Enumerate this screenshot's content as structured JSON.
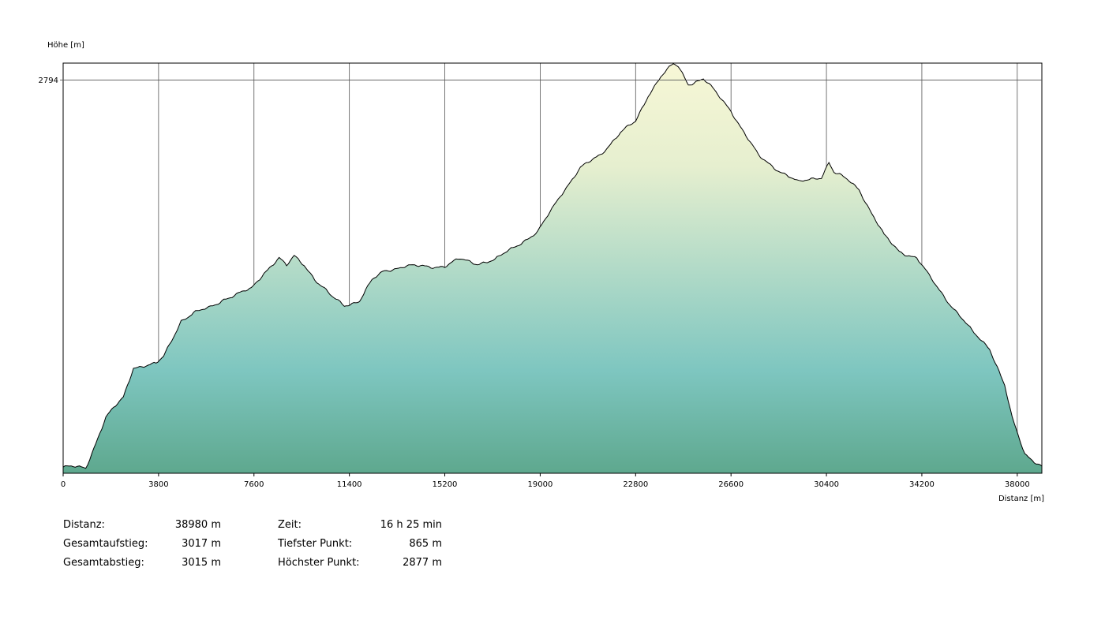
{
  "chart_data": {
    "type": "area",
    "ylabel": "Höhe [m]",
    "xlabel": "Distanz [m]",
    "x_ticks": [
      0,
      3800,
      7600,
      11400,
      15200,
      19000,
      22800,
      26600,
      30400,
      34200,
      38000
    ],
    "y_tick_labels": [
      2794
    ],
    "xlim": [
      0,
      38980
    ],
    "ylim": [
      865,
      2877
    ],
    "grid": true,
    "colors": {
      "top": "#f7f7d6",
      "middle": "#7ec6c0",
      "bottom": "#5ea88e",
      "line": "#000000",
      "grid": "#555555"
    },
    "x": [
      0,
      400,
      900,
      1700,
      2400,
      2800,
      3300,
      3700,
      4000,
      4700,
      5200,
      5800,
      6400,
      6900,
      7500,
      8000,
      8600,
      8900,
      9200,
      9600,
      10100,
      10700,
      11200,
      11800,
      12300,
      12800,
      13600,
      14400,
      15200,
      15800,
      16500,
      17200,
      18000,
      18900,
      19800,
      20600,
      21400,
      22200,
      22800,
      23300,
      23800,
      24300,
      24500,
      24900,
      25500,
      25800,
      26000,
      26600,
      27200,
      27700,
      28400,
      29300,
      29800,
      30200,
      30500,
      30700,
      31300,
      31700,
      32200,
      32700,
      33300,
      34000,
      34500,
      35300,
      36200,
      36900,
      37500,
      37800,
      38300,
      38980
    ],
    "y": [
      895,
      895,
      890,
      1140,
      1235,
      1385,
      1395,
      1400,
      1435,
      1615,
      1650,
      1675,
      1720,
      1740,
      1770,
      1850,
      1920,
      1880,
      1930,
      1890,
      1805,
      1730,
      1690,
      1710,
      1810,
      1860,
      1880,
      1880,
      1880,
      1915,
      1895,
      1910,
      1980,
      2045,
      2230,
      2360,
      2430,
      2535,
      2590,
      2720,
      2810,
      2870,
      2860,
      2775,
      2800,
      2760,
      2730,
      2645,
      2520,
      2420,
      2360,
      2290,
      2310,
      2320,
      2390,
      2340,
      2300,
      2260,
      2140,
      2030,
      1955,
      1920,
      1830,
      1700,
      1560,
      1480,
      1295,
      1130,
      960,
      900
    ]
  },
  "stats": {
    "distance_label": "Distanz:",
    "distance_value": "38980 m",
    "ascent_label": "Gesamtaufstieg:",
    "ascent_value": "3017 m",
    "descent_label": "Gesamtabstieg:",
    "descent_value": "3015 m",
    "time_label": "Zeit:",
    "time_value": "16 h 25 min",
    "lowest_label": "Tiefster Punkt:",
    "lowest_value": "865 m",
    "highest_label": "Höchster Punkt:",
    "highest_value": "2877 m"
  }
}
